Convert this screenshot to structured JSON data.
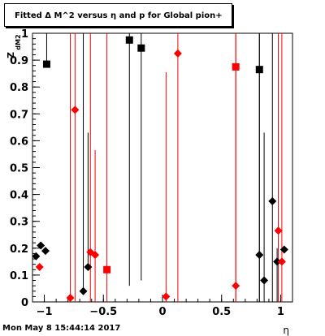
{
  "chart_data": {
    "type": "scatter",
    "title": "Fitted Δ M^2 versus η and p for Global pion+",
    "xlabel": "η",
    "ylabel": "Z",
    "ylabel_sub": "dM2",
    "xlim": [
      -1.1,
      1.1
    ],
    "ylim": [
      0,
      1
    ],
    "xticks": [
      -1,
      -0.5,
      0,
      0.5,
      1
    ],
    "xtick_labels": [
      "−1",
      "−0.5",
      "0",
      "0.5",
      "1"
    ],
    "yticks": [
      0,
      0.1,
      0.2,
      0.3,
      0.4,
      0.5,
      0.6,
      0.7,
      0.8,
      0.9,
      1
    ],
    "ytick_labels": [
      "0",
      "0.1",
      "0.2",
      "0.3",
      "0.4",
      "0.5",
      "0.6",
      "0.7",
      "0.8",
      "0.9",
      "1"
    ],
    "grid": false,
    "series": [
      {
        "color": "#000000",
        "points": [
          {
            "x": -1.07,
            "y": 0.17,
            "marker": "diamond",
            "err": [
              0.0,
              0.0
            ]
          },
          {
            "x": -1.03,
            "y": 0.21,
            "marker": "diamond",
            "err": [
              0.0,
              0.0
            ]
          },
          {
            "x": -0.99,
            "y": 0.19,
            "marker": "diamond",
            "err": [
              0.0,
              0.0
            ]
          },
          {
            "x": -0.98,
            "y": 0.885,
            "marker": "square",
            "err": [
              0.0,
              0.115
            ]
          },
          {
            "x": -0.67,
            "y": 0.04,
            "marker": "diamond",
            "err": [
              0.0,
              0.96
            ]
          },
          {
            "x": -0.63,
            "y": 0.13,
            "marker": "diamond",
            "err": [
              0.0,
              0.5
            ]
          },
          {
            "x": -0.28,
            "y": 0.975,
            "marker": "square",
            "err": [
              0.915,
              0.025
            ]
          },
          {
            "x": -0.18,
            "y": 0.945,
            "marker": "square",
            "err": [
              0.865,
              0.055
            ]
          },
          {
            "x": 0.82,
            "y": 0.865,
            "marker": "square",
            "err": [
              0.865,
              0.135
            ]
          },
          {
            "x": 0.82,
            "y": 0.175,
            "marker": "diamond",
            "err": [
              0.175,
              0.825
            ]
          },
          {
            "x": 0.86,
            "y": 0.08,
            "marker": "diamond",
            "err": [
              0.08,
              0.55
            ]
          },
          {
            "x": 0.93,
            "y": 0.375,
            "marker": "diamond",
            "err": [
              0.375,
              0.625
            ]
          },
          {
            "x": 0.97,
            "y": 0.15,
            "marker": "diamond",
            "err": [
              0.15,
              0.05
            ]
          },
          {
            "x": 1.03,
            "y": 0.195,
            "marker": "diamond",
            "err": [
              0.0,
              0.0
            ]
          }
        ]
      },
      {
        "color": "#ff0000",
        "points": [
          {
            "x": -1.04,
            "y": 0.13,
            "marker": "diamond",
            "err": [
              0.0,
              0.0
            ]
          },
          {
            "x": -0.78,
            "y": 0.015,
            "marker": "diamond",
            "err": [
              0.015,
              0.985
            ]
          },
          {
            "x": -0.74,
            "y": 0.715,
            "marker": "diamond",
            "err": [
              0.715,
              0.285
            ]
          },
          {
            "x": -0.61,
            "y": 0.185,
            "marker": "diamond",
            "err": [
              0.185,
              0.815
            ]
          },
          {
            "x": -0.57,
            "y": 0.175,
            "marker": "diamond",
            "err": [
              0.175,
              0.39
            ]
          },
          {
            "x": -0.47,
            "y": 0.12,
            "marker": "square",
            "err": [
              0.12,
              0.88
            ]
          },
          {
            "x": 0.03,
            "y": 0.02,
            "marker": "diamond",
            "err": [
              0.02,
              0.835
            ]
          },
          {
            "x": 0.13,
            "y": 0.925,
            "marker": "diamond",
            "err": [
              0.925,
              0.075
            ]
          },
          {
            "x": 0.62,
            "y": 0.875,
            "marker": "square",
            "err": [
              0.875,
              0.125
            ]
          },
          {
            "x": 0.62,
            "y": 0.06,
            "marker": "diamond",
            "err": [
              0.06,
              0.94
            ]
          },
          {
            "x": 0.98,
            "y": 0.265,
            "marker": "diamond",
            "err": [
              0.265,
              0.735
            ]
          },
          {
            "x": 1.01,
            "y": 0.15,
            "marker": "diamond",
            "err": [
              0.15,
              0.85
            ]
          }
        ]
      }
    ]
  },
  "footer": {
    "timestamp": "Mon May  8 15:44:14 2017"
  }
}
